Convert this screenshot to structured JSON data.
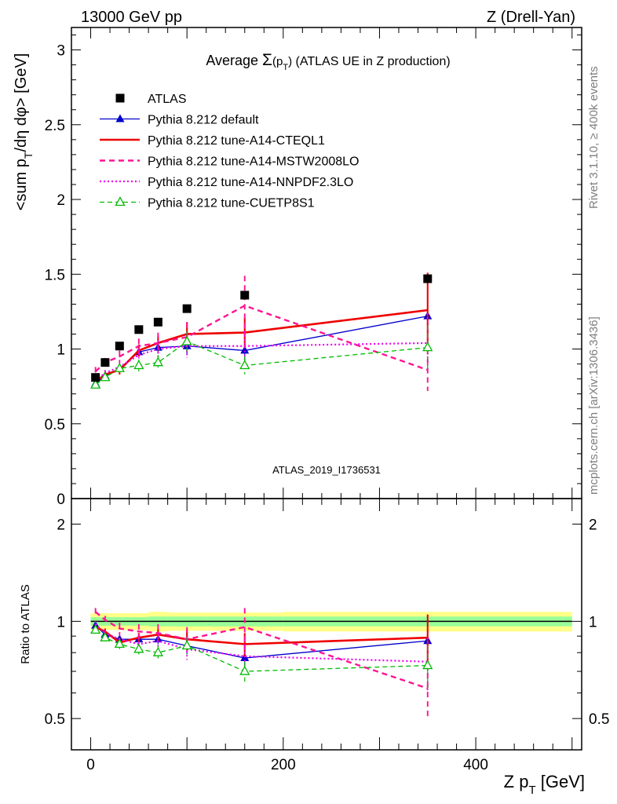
{
  "header": {
    "left": "13000 GeV pp",
    "right": "Z (Drell-Yan)"
  },
  "side_labels": {
    "rivet": "Rivet 3.1.10, ≥ 400k events",
    "mcplots": "mcplots.cern.ch [arXiv:1306.3436]"
  },
  "analysis_id": "ATLAS_2019_I1736531",
  "colors": {
    "ATLAS": "#000000",
    "default": "#0000cc",
    "cteql1": "#ee0000",
    "mstw": "#ff1493",
    "nnpdf": "#ee00ee",
    "cuetp": "#00bb00",
    "band_inner": "#99ff99",
    "band_outer": "#ffff88"
  },
  "chart_data": [
    {
      "type": "scatter",
      "panel": "main",
      "title": "Average Σ(p_T) (ATLAS UE in Z production)",
      "title_prefix": "Average ",
      "title_sigma": "Σ",
      "title_paren_open": "(p",
      "title_sub": "T",
      "title_paren_close": ")",
      "title_suffix": " (ATLAS UE in Z production)",
      "ylabel": "<sum p_T/dη dφ> [GeV]",
      "ylabel_parts": {
        "a": "<sum p",
        "sub": "T",
        "b": "/dη dφ> [GeV]"
      },
      "xlim": [
        -20,
        510
      ],
      "ylim": [
        0,
        3.15
      ],
      "yticks": [
        0,
        0.5,
        1,
        1.5,
        2,
        2.5,
        3
      ],
      "ytick_labels": [
        "0",
        "0.5",
        "1",
        "1.5",
        "2",
        "2.5",
        "3"
      ],
      "x": [
        5,
        15,
        30,
        50,
        70,
        100,
        160,
        350
      ],
      "series": [
        {
          "key": "ATLAS",
          "name": "ATLAS",
          "style": "data",
          "values": [
            0.81,
            0.91,
            1.02,
            1.13,
            1.18,
            1.27,
            1.36,
            1.47
          ],
          "errors": [
            0,
            0,
            0,
            0,
            0,
            0,
            0,
            0
          ]
        },
        {
          "key": "default",
          "name": "Pythia 8.212 default",
          "style": "solid-thin-tri",
          "values": [
            0.77,
            0.82,
            0.87,
            0.98,
            1.01,
            1.02,
            0.99,
            1.22
          ],
          "errors": [
            0.02,
            0.02,
            0.02,
            0.03,
            0.04,
            0.06,
            0.08,
            0.18
          ]
        },
        {
          "key": "cteql1",
          "name": "Pythia 8.212 tune-A14-CTEQL1",
          "style": "solid-thick",
          "values": [
            0.78,
            0.83,
            0.86,
            0.99,
            1.04,
            1.1,
            1.11,
            1.26
          ],
          "errors": [
            0.02,
            0.02,
            0.03,
            0.04,
            0.05,
            0.08,
            0.1,
            0.25
          ]
        },
        {
          "key": "mstw",
          "name": "Pythia 8.212 tune-A14-MSTW2008LO",
          "style": "dashed-thick",
          "values": [
            0.85,
            0.91,
            0.95,
            1.02,
            1.04,
            1.08,
            1.29,
            0.86
          ],
          "errors": [
            0.03,
            0.03,
            0.04,
            0.05,
            0.07,
            0.1,
            0.2,
            0.14
          ]
        },
        {
          "key": "nnpdf",
          "name": "Pythia 8.212 tune-A14-NNPDF2.3LO",
          "style": "dotted",
          "values": [
            0.79,
            0.84,
            0.88,
            0.96,
            1.0,
            1.02,
            1.02,
            1.04
          ],
          "errors": [
            0.02,
            0.02,
            0.03,
            0.04,
            0.06,
            0.08,
            0.1,
            0.2
          ]
        },
        {
          "key": "cuetp",
          "name": "Pythia 8.212 tune-CUETP8S1",
          "style": "dashed-thin-opentri",
          "values": [
            0.76,
            0.81,
            0.87,
            0.89,
            0.91,
            1.05,
            0.89,
            1.01
          ],
          "errors": [
            0.02,
            0.02,
            0.03,
            0.04,
            0.05,
            0.07,
            0.06,
            0.15
          ]
        }
      ],
      "legend_position": "top-left"
    },
    {
      "type": "scatter",
      "panel": "ratio",
      "ylabel": "Ratio to ATLAS",
      "xlabel": "Z p_T [GeV]",
      "xlabel_parts": {
        "a": "Z p",
        "sub": "T",
        "b": " [GeV]"
      },
      "xlim": [
        -20,
        510
      ],
      "ylim": [
        0.4,
        2.4
      ],
      "log_y": true,
      "yticks": [
        0.5,
        1,
        2
      ],
      "ytick_labels": [
        "0.5",
        "1",
        "2"
      ],
      "xticks": [
        0,
        200,
        400
      ],
      "xtick_labels": [
        "0",
        "200",
        "400"
      ],
      "x": [
        5,
        15,
        30,
        50,
        70,
        100,
        160,
        350
      ],
      "band_bins": [
        [
          0,
          10,
          0.03,
          0.06
        ],
        [
          10,
          20,
          0.03,
          0.06
        ],
        [
          20,
          40,
          0.03,
          0.06
        ],
        [
          40,
          60,
          0.03,
          0.06
        ],
        [
          60,
          80,
          0.035,
          0.07
        ],
        [
          80,
          120,
          0.035,
          0.065
        ],
        [
          120,
          200,
          0.035,
          0.065
        ],
        [
          200,
          500,
          0.035,
          0.07
        ]
      ],
      "series": [
        {
          "key": "default",
          "values": [
            0.97,
            0.91,
            0.88,
            0.88,
            0.88,
            0.84,
            0.77,
            0.87
          ],
          "errors": [
            0.02,
            0.02,
            0.02,
            0.03,
            0.03,
            0.05,
            0.06,
            0.12
          ]
        },
        {
          "key": "cteql1",
          "values": [
            0.96,
            0.93,
            0.86,
            0.89,
            0.91,
            0.88,
            0.85,
            0.89
          ],
          "errors": [
            0.02,
            0.02,
            0.03,
            0.03,
            0.04,
            0.06,
            0.07,
            0.16
          ]
        },
        {
          "key": "mstw",
          "values": [
            1.07,
            1.01,
            0.95,
            0.93,
            0.92,
            0.88,
            0.96,
            0.62
          ],
          "errors": [
            0.03,
            0.03,
            0.04,
            0.05,
            0.06,
            0.08,
            0.14,
            0.12
          ]
        },
        {
          "key": "nnpdf",
          "values": [
            0.98,
            0.92,
            0.88,
            0.85,
            0.87,
            0.82,
            0.78,
            0.75
          ],
          "errors": [
            0.02,
            0.02,
            0.03,
            0.04,
            0.05,
            0.06,
            0.07,
            0.14
          ]
        },
        {
          "key": "cuetp",
          "values": [
            0.94,
            0.89,
            0.85,
            0.82,
            0.8,
            0.84,
            0.7,
            0.73
          ],
          "errors": [
            0.02,
            0.02,
            0.03,
            0.03,
            0.04,
            0.05,
            0.05,
            0.11
          ]
        }
      ]
    }
  ]
}
